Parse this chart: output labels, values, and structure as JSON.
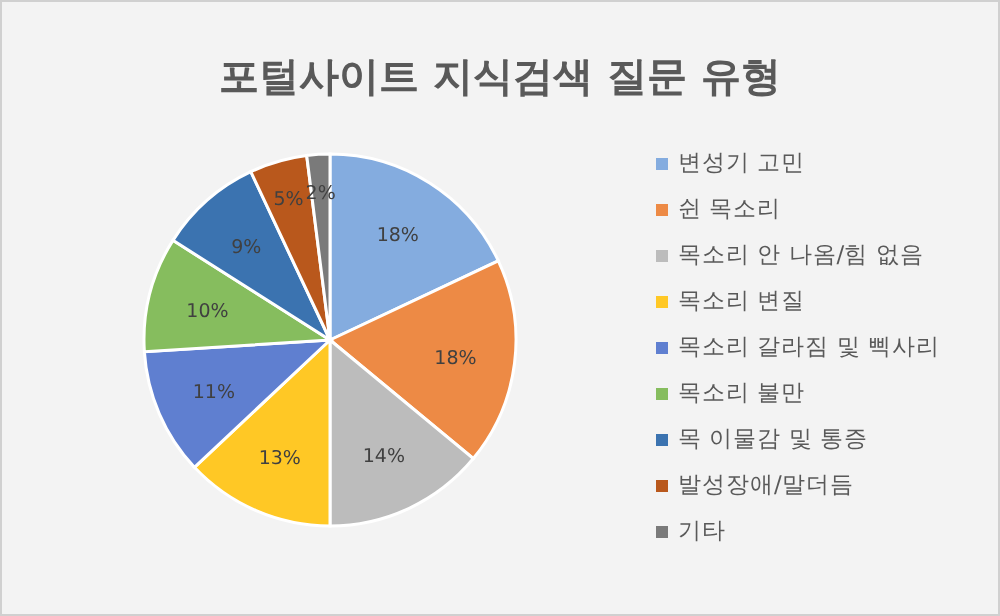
{
  "chart_data": {
    "type": "pie",
    "title": "포털사이트 지식검색 질문 유형",
    "categories": [
      "변성기 고민",
      "쉰 목소리",
      "목소리 안 나옴/힘 없음",
      "목소리 변질",
      "목소리 갈라짐 및 삑사리",
      "목소리 불만",
      "목 이물감 및 통증",
      "발성장애/말더듬",
      "기타"
    ],
    "values": [
      18,
      18,
      14,
      13,
      11,
      10,
      9,
      5,
      2
    ],
    "colors": [
      "#84acdf",
      "#ed8a45",
      "#bcbcbc",
      "#ffc825",
      "#5f7fd0",
      "#86bd5e",
      "#3b73b0",
      "#b9581c",
      "#7a7a7a"
    ],
    "value_labels": [
      "18%",
      "18%",
      "14%",
      "13%",
      "11%",
      "10%",
      "9%",
      "5%",
      "2%"
    ],
    "legend": "right"
  }
}
